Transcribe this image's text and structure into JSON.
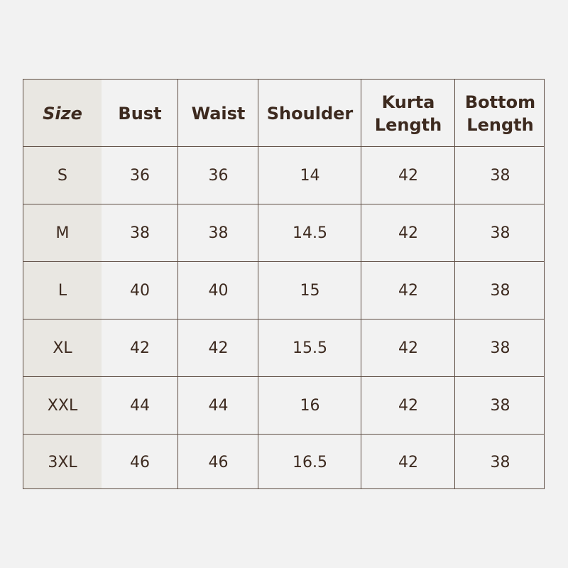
{
  "table": {
    "headers": [
      "Size",
      "Bust",
      "Waist",
      "Shoulder",
      "Kurta Length",
      "Bottom Length"
    ],
    "rows": [
      [
        "S",
        "36",
        "36",
        "14",
        "42",
        "38"
      ],
      [
        "M",
        "38",
        "38",
        "14.5",
        "42",
        "38"
      ],
      [
        "L",
        "40",
        "40",
        "15",
        "42",
        "38"
      ],
      [
        "XL",
        "42",
        "42",
        "15.5",
        "42",
        "38"
      ],
      [
        "XXL",
        "44",
        "44",
        "16",
        "42",
        "38"
      ],
      [
        "3XL",
        "46",
        "46",
        "16.5",
        "42",
        "38"
      ]
    ]
  },
  "colors": {
    "background": "#f2f2f2",
    "size_column": "#e9e7e2",
    "border": "#5e4d43",
    "text": "#3d2a1f"
  }
}
